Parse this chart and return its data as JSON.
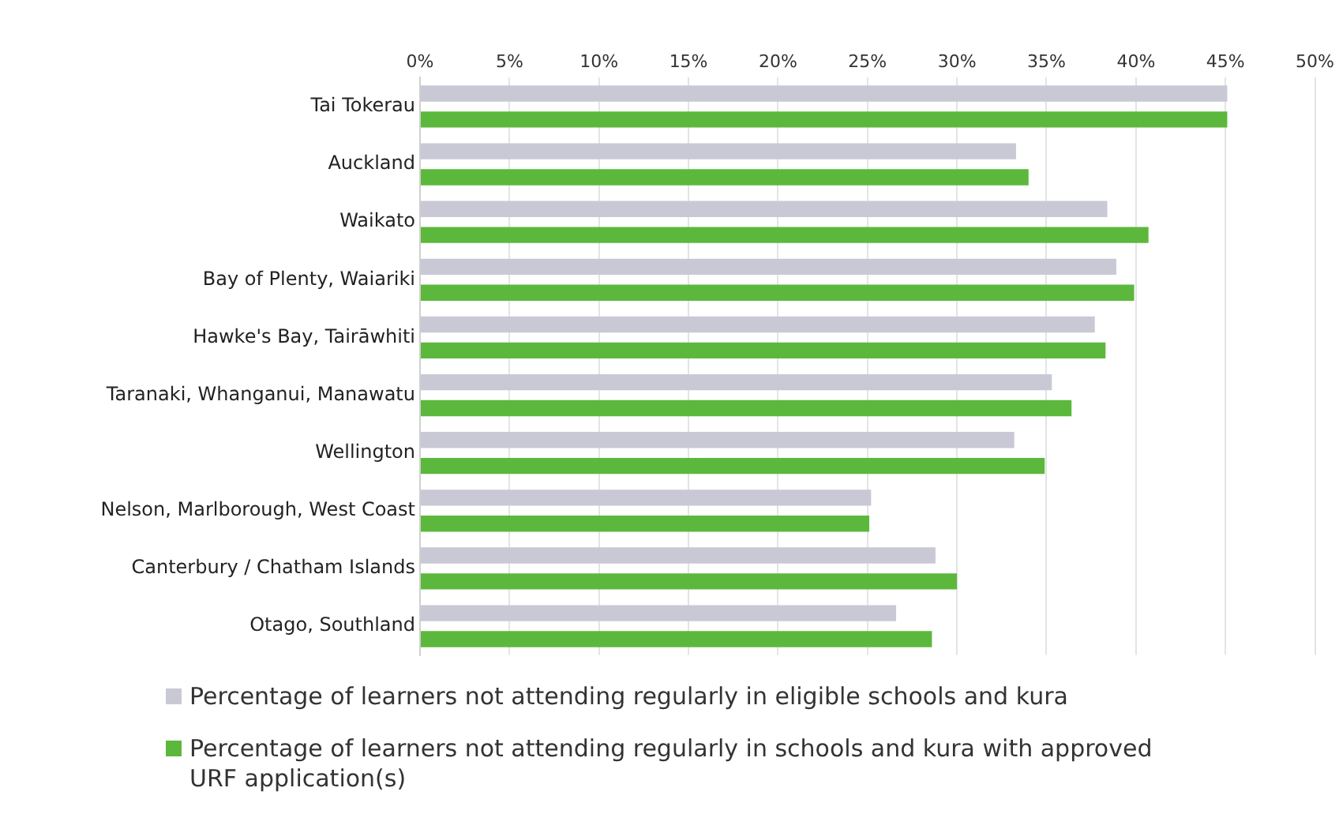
{
  "chart_data": {
    "type": "bar",
    "orientation": "horizontal",
    "categories": [
      "Tai Tokerau",
      "Auckland",
      "Waikato",
      "Bay of Plenty, Waiariki",
      "Hawke's Bay, Tairāwhiti",
      "Taranaki, Whanganui, Manawatu",
      "Wellington",
      "Nelson, Marlborough, West Coast",
      "Canterbury / Chatham Islands",
      "Otago, Southland"
    ],
    "series": [
      {
        "name": "Percentage of learners not attending regularly in eligible schools and kura",
        "color": "#c9c9d6",
        "values": [
          45.1,
          33.3,
          38.4,
          38.9,
          37.7,
          35.3,
          33.2,
          25.2,
          28.8,
          26.6
        ]
      },
      {
        "name": "Percentage of learners not attending regularly in schools and kura with approved URF application(s)",
        "color": "#5cb83c",
        "values": [
          45.1,
          34.0,
          40.7,
          39.9,
          38.3,
          36.4,
          34.9,
          25.1,
          30.0,
          28.6
        ]
      }
    ],
    "xlim": [
      0,
      50
    ],
    "xticks": [
      {
        "value": 0,
        "label": "0%"
      },
      {
        "value": 5,
        "label": "5%"
      },
      {
        "value": 10,
        "label": "10%"
      },
      {
        "value": 15,
        "label": "15%"
      },
      {
        "value": 20,
        "label": "20%"
      },
      {
        "value": 25,
        "label": "25%"
      },
      {
        "value": 30,
        "label": "30%"
      },
      {
        "value": 35,
        "label": "35%"
      },
      {
        "value": 40,
        "label": "40%"
      },
      {
        "value": 45,
        "label": "45%"
      },
      {
        "value": 50,
        "label": "50%"
      }
    ],
    "grid": "x",
    "legend": "bottom"
  }
}
